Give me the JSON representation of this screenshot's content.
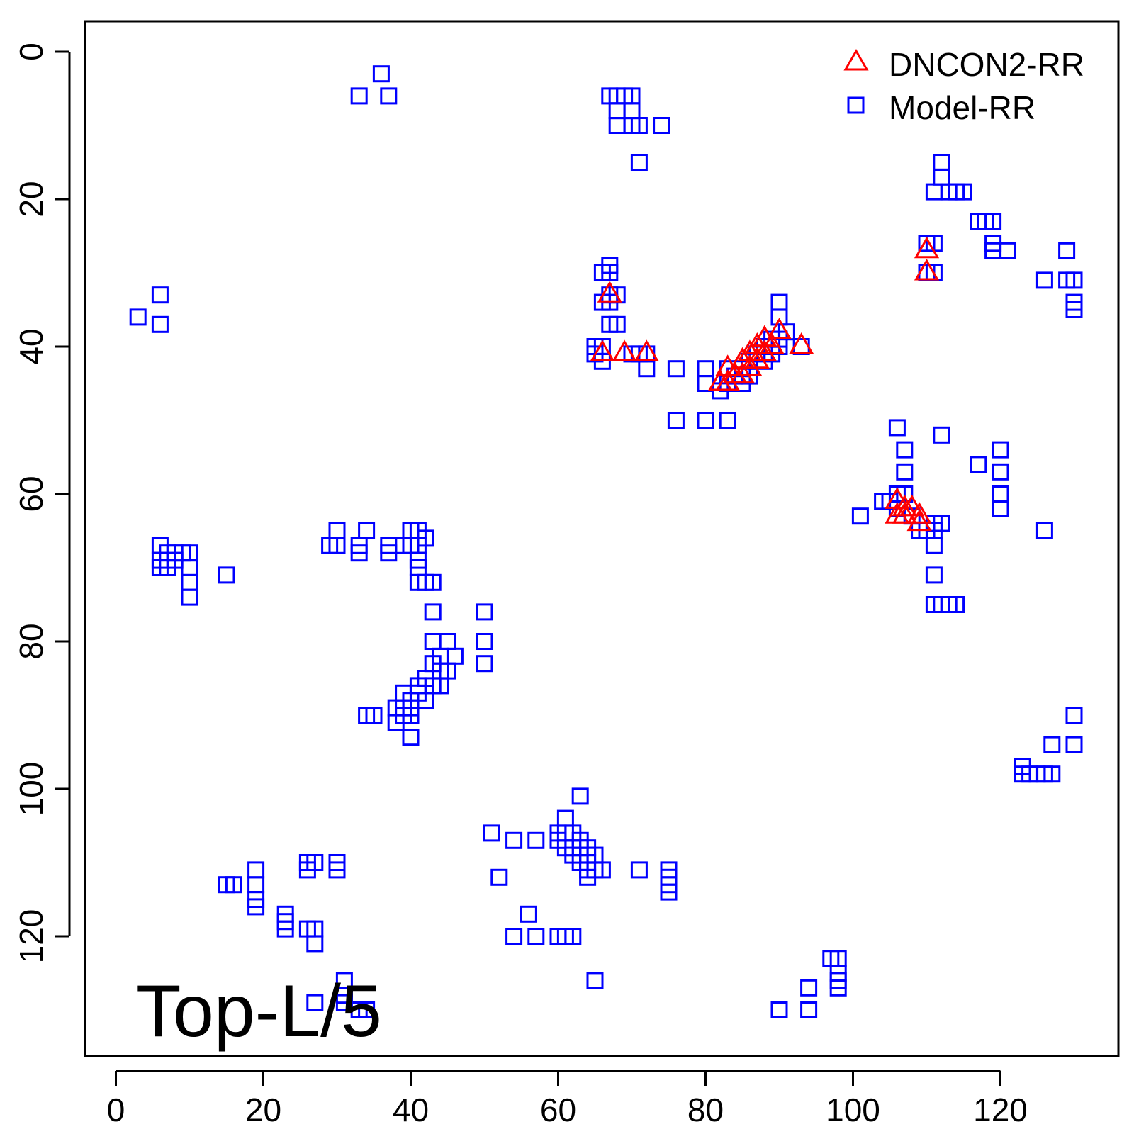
{
  "chart_data": {
    "type": "scatter",
    "title": "",
    "xlabel": "",
    "ylabel": "",
    "annotation": "Top-L/5",
    "xlim": [
      -4,
      136
    ],
    "ylim": [
      -4,
      136
    ],
    "y_axis_reversed": true,
    "grid": false,
    "legend_position": "top-right",
    "x_ticks": [
      "0",
      "20",
      "40",
      "60",
      "80",
      "100",
      "120"
    ],
    "y_ticks": [
      "0",
      "20",
      "40",
      "60",
      "80",
      "100",
      "120"
    ],
    "x_tick_values": [
      0,
      20,
      40,
      60,
      80,
      100,
      120
    ],
    "y_tick_values": [
      0,
      20,
      40,
      60,
      80,
      100,
      120
    ],
    "series": [
      {
        "name": "Model-RR",
        "marker": "square",
        "color": "#0000ff",
        "points": [
          [
            36,
            3
          ],
          [
            33,
            6
          ],
          [
            37,
            6
          ],
          [
            67,
            6
          ],
          [
            68,
            6
          ],
          [
            69,
            6
          ],
          [
            70,
            6
          ],
          [
            68,
            8
          ],
          [
            70,
            8
          ],
          [
            68,
            10
          ],
          [
            70,
            10
          ],
          [
            71,
            10
          ],
          [
            74,
            10
          ],
          [
            71,
            15
          ],
          [
            3,
            36
          ],
          [
            6,
            33
          ],
          [
            6,
            37
          ],
          [
            66,
            30
          ],
          [
            67,
            30
          ],
          [
            67,
            29
          ],
          [
            67,
            33
          ],
          [
            68,
            33
          ],
          [
            66,
            34
          ],
          [
            67,
            34
          ],
          [
            67,
            37
          ],
          [
            68,
            37
          ],
          [
            65,
            40
          ],
          [
            66,
            40
          ],
          [
            65,
            41
          ],
          [
            66,
            42
          ],
          [
            70,
            41
          ],
          [
            71,
            41
          ],
          [
            72,
            41
          ],
          [
            72,
            43
          ],
          [
            76,
            43
          ],
          [
            80,
            43
          ],
          [
            80,
            45
          ],
          [
            82,
            46
          ],
          [
            83,
            45
          ],
          [
            76,
            50
          ],
          [
            80,
            50
          ],
          [
            83,
            50
          ],
          [
            83,
            43
          ],
          [
            84,
            44
          ],
          [
            85,
            43
          ],
          [
            85,
            45
          ],
          [
            86,
            42
          ],
          [
            86,
            44
          ],
          [
            87,
            41
          ],
          [
            88,
            42
          ],
          [
            88,
            40
          ],
          [
            89,
            41
          ],
          [
            89,
            39
          ],
          [
            90,
            39
          ],
          [
            90,
            40
          ],
          [
            91,
            38
          ],
          [
            90,
            34
          ],
          [
            90,
            36
          ],
          [
            93,
            40
          ],
          [
            112,
            15
          ],
          [
            112,
            17
          ],
          [
            111,
            19
          ],
          [
            113,
            19
          ],
          [
            114,
            19
          ],
          [
            115,
            19
          ],
          [
            117,
            23
          ],
          [
            118,
            23
          ],
          [
            119,
            23
          ],
          [
            119,
            26
          ],
          [
            119,
            27
          ],
          [
            121,
            27
          ],
          [
            110,
            26
          ],
          [
            111,
            26
          ],
          [
            110,
            30
          ],
          [
            111,
            30
          ],
          [
            129,
            27
          ],
          [
            126,
            31
          ],
          [
            129,
            31
          ],
          [
            130,
            31
          ],
          [
            130,
            34
          ],
          [
            130,
            35
          ],
          [
            106,
            51
          ],
          [
            107,
            54
          ],
          [
            107,
            57
          ],
          [
            112,
            52
          ],
          [
            117,
            56
          ],
          [
            120,
            54
          ],
          [
            120,
            57
          ],
          [
            120,
            60
          ],
          [
            120,
            62
          ],
          [
            101,
            63
          ],
          [
            104,
            61
          ],
          [
            106,
            60
          ],
          [
            107,
            60
          ],
          [
            105,
            61
          ],
          [
            106,
            62
          ],
          [
            108,
            63
          ],
          [
            109,
            65
          ],
          [
            110,
            65
          ],
          [
            111,
            65
          ],
          [
            111,
            67
          ],
          [
            111,
            64
          ],
          [
            112,
            64
          ],
          [
            111,
            71
          ],
          [
            111,
            75
          ],
          [
            112,
            75
          ],
          [
            113,
            75
          ],
          [
            114,
            75
          ],
          [
            126,
            65
          ],
          [
            6,
            67
          ],
          [
            6,
            69
          ],
          [
            7,
            68
          ],
          [
            6,
            70
          ],
          [
            7,
            70
          ],
          [
            8,
            69
          ],
          [
            8,
            68
          ],
          [
            9,
            68
          ],
          [
            10,
            68
          ],
          [
            10,
            70
          ],
          [
            10,
            72
          ],
          [
            10,
            74
          ],
          [
            15,
            71
          ],
          [
            29,
            67
          ],
          [
            30,
            65
          ],
          [
            30,
            67
          ],
          [
            33,
            67
          ],
          [
            33,
            68
          ],
          [
            34,
            65
          ],
          [
            37,
            67
          ],
          [
            37,
            68
          ],
          [
            39,
            67
          ],
          [
            40,
            65
          ],
          [
            41,
            65
          ],
          [
            40,
            67
          ],
          [
            41,
            67
          ],
          [
            42,
            66
          ],
          [
            41,
            69
          ],
          [
            41,
            70
          ],
          [
            41,
            72
          ],
          [
            42,
            72
          ],
          [
            43,
            72
          ],
          [
            43,
            76
          ],
          [
            50,
            76
          ],
          [
            43,
            80
          ],
          [
            45,
            80
          ],
          [
            50,
            80
          ],
          [
            44,
            82
          ],
          [
            46,
            82
          ],
          [
            50,
            83
          ],
          [
            43,
            83
          ],
          [
            44,
            84
          ],
          [
            45,
            84
          ],
          [
            42,
            85
          ],
          [
            43,
            86
          ],
          [
            44,
            86
          ],
          [
            41,
            86
          ],
          [
            42,
            88
          ],
          [
            41,
            87
          ],
          [
            40,
            88
          ],
          [
            39,
            87
          ],
          [
            39,
            89
          ],
          [
            40,
            89
          ],
          [
            38,
            89
          ],
          [
            38,
            91
          ],
          [
            39,
            90
          ],
          [
            40,
            90
          ],
          [
            40,
            93
          ],
          [
            34,
            90
          ],
          [
            35,
            90
          ],
          [
            51,
            106
          ],
          [
            54,
            107
          ],
          [
            57,
            107
          ],
          [
            60,
            106
          ],
          [
            60,
            107
          ],
          [
            61,
            106
          ],
          [
            62,
            106
          ],
          [
            61,
            104
          ],
          [
            63,
            101
          ],
          [
            61,
            108
          ],
          [
            62,
            108
          ],
          [
            63,
            107
          ],
          [
            63,
            108
          ],
          [
            62,
            109
          ],
          [
            63,
            110
          ],
          [
            64,
            109
          ],
          [
            64,
            108
          ],
          [
            65,
            109
          ],
          [
            64,
            110
          ],
          [
            64,
            111
          ],
          [
            65,
            111
          ],
          [
            64,
            112
          ],
          [
            66,
            111
          ],
          [
            52,
            112
          ],
          [
            71,
            111
          ],
          [
            75,
            111
          ],
          [
            75,
            112
          ],
          [
            75,
            113
          ],
          [
            75,
            114
          ],
          [
            56,
            117
          ],
          [
            54,
            120
          ],
          [
            57,
            120
          ],
          [
            60,
            120
          ],
          [
            61,
            120
          ],
          [
            62,
            120
          ],
          [
            65,
            126
          ],
          [
            15,
            113
          ],
          [
            16,
            113
          ],
          [
            19,
            111
          ],
          [
            19,
            113
          ],
          [
            19,
            115
          ],
          [
            19,
            116
          ],
          [
            23,
            117
          ],
          [
            23,
            118
          ],
          [
            23,
            119
          ],
          [
            26,
            110
          ],
          [
            27,
            110
          ],
          [
            26,
            111
          ],
          [
            30,
            110
          ],
          [
            30,
            111
          ],
          [
            26,
            119
          ],
          [
            27,
            119
          ],
          [
            27,
            121
          ],
          [
            31,
            126
          ],
          [
            31,
            128
          ],
          [
            27,
            129
          ],
          [
            31,
            129
          ],
          [
            33,
            130
          ],
          [
            34,
            130
          ],
          [
            97,
            123
          ],
          [
            98,
            123
          ],
          [
            98,
            125
          ],
          [
            98,
            126
          ],
          [
            98,
            127
          ],
          [
            94,
            127
          ],
          [
            90,
            130
          ],
          [
            94,
            130
          ],
          [
            123,
            97
          ],
          [
            123,
            98
          ],
          [
            124,
            98
          ],
          [
            125,
            98
          ],
          [
            126,
            98
          ],
          [
            127,
            98
          ],
          [
            127,
            94
          ],
          [
            130,
            94
          ],
          [
            130,
            90
          ]
        ]
      },
      {
        "name": "DNCON2-RR",
        "marker": "triangle",
        "color": "#ff0000",
        "points": [
          [
            67,
            33
          ],
          [
            66,
            41
          ],
          [
            69,
            41
          ],
          [
            72,
            41
          ],
          [
            82,
            45
          ],
          [
            83,
            43
          ],
          [
            83,
            45
          ],
          [
            84,
            44
          ],
          [
            85,
            42
          ],
          [
            85,
            44
          ],
          [
            86,
            41
          ],
          [
            86,
            43
          ],
          [
            87,
            40
          ],
          [
            87,
            42
          ],
          [
            88,
            39
          ],
          [
            88,
            41
          ],
          [
            89,
            40
          ],
          [
            90,
            38
          ],
          [
            93,
            40
          ],
          [
            110,
            27
          ],
          [
            110,
            30
          ],
          [
            106,
            61
          ],
          [
            107,
            62
          ],
          [
            108,
            62
          ],
          [
            109,
            63
          ],
          [
            109,
            64
          ],
          [
            107,
            63
          ],
          [
            106,
            63
          ]
        ]
      }
    ]
  }
}
